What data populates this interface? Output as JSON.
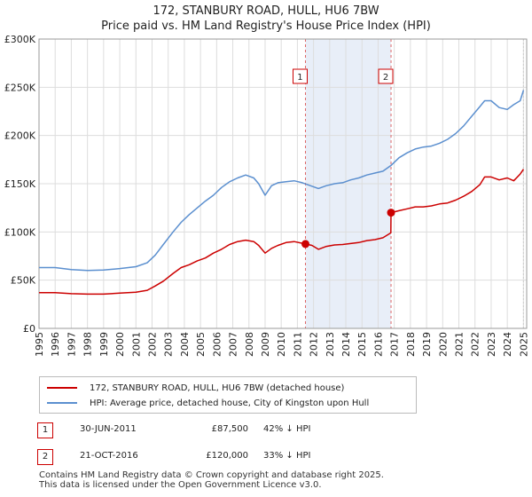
{
  "chart_data": {
    "type": "line",
    "title": "172, STANBURY ROAD, HULL, HU6 7BW",
    "subtitle": "Price paid vs. HM Land Registry's House Price Index (HPI)",
    "xlabel": "",
    "ylabel": "",
    "xlim": [
      1995,
      2025.2
    ],
    "ylim": [
      0,
      300000
    ],
    "grid": true,
    "y_ticks": [
      0,
      50000,
      100000,
      150000,
      200000,
      250000,
      300000
    ],
    "y_tick_labels": [
      "£0",
      "£50K",
      "£100K",
      "£150K",
      "£200K",
      "£250K",
      "£300K"
    ],
    "x_ticks": [
      1995,
      1996,
      1997,
      1998,
      1999,
      2000,
      2001,
      2002,
      2003,
      2004,
      2005,
      2006,
      2007,
      2008,
      2009,
      2010,
      2011,
      2012,
      2013,
      2014,
      2015,
      2016,
      2017,
      2018,
      2019,
      2020,
      2021,
      2022,
      2023,
      2024,
      2025
    ],
    "x_tick_labels": [
      "1995",
      "1996",
      "1997",
      "1998",
      "1999",
      "2000",
      "2001",
      "2002",
      "2003",
      "2004",
      "2005",
      "2006",
      "2007",
      "2008",
      "2009",
      "2010",
      "2011",
      "2012",
      "2013",
      "2014",
      "2015",
      "2016",
      "2017",
      "2018",
      "2019",
      "2020",
      "2021",
      "2022",
      "2023",
      "2024",
      "2025"
    ],
    "shaded_region": {
      "x0": 2011.5,
      "x1": 2016.8
    },
    "series": [
      {
        "name": "172, STANBURY ROAD, HULL, HU6 7BW (detached house)",
        "color": "#cc0000",
        "x": [
          1995,
          1996,
          1997,
          1998,
          1999,
          2000,
          2001,
          2001.7,
          2002.2,
          2002.7,
          2003.3,
          2003.8,
          2004.3,
          2004.8,
          2005.3,
          2005.8,
          2006.3,
          2006.8,
          2007.3,
          2007.8,
          2008.3,
          2008.6,
          2009.0,
          2009.4,
          2009.8,
          2010.3,
          2010.8,
          2011.5,
          2011.9,
          2012.3,
          2012.8,
          2013.3,
          2013.8,
          2014.3,
          2014.8,
          2015.3,
          2015.8,
          2016.3,
          2016.79,
          2016.8,
          2017.3,
          2017.8,
          2018.3,
          2018.8,
          2019.3,
          2019.8,
          2020.3,
          2020.8,
          2021.3,
          2021.8,
          2022.3,
          2022.6,
          2023.0,
          2023.5,
          2024.0,
          2024.4,
          2024.8,
          2025.0
        ],
        "y": [
          37000,
          37000,
          36000,
          35500,
          35500,
          36500,
          37500,
          39500,
          44000,
          49000,
          57000,
          63000,
          66000,
          70000,
          73000,
          78000,
          82000,
          87000,
          90000,
          91500,
          90000,
          86000,
          78000,
          83000,
          86000,
          89000,
          90000,
          87500,
          86000,
          82000,
          85000,
          86500,
          87000,
          88000,
          89000,
          91000,
          92000,
          94000,
          99000,
          120000,
          122000,
          124000,
          126000,
          126000,
          127000,
          129000,
          130000,
          133000,
          137000,
          142000,
          149000,
          157000,
          157000,
          154000,
          156000,
          153000,
          160000,
          165000
        ]
      },
      {
        "name": "HPI: Average price, detached house, City of Kingston upon Hull",
        "color": "#5b8fcf",
        "x": [
          1995,
          1996,
          1997,
          1998,
          1999,
          2000,
          2001,
          2001.7,
          2002.2,
          2002.7,
          2003.3,
          2003.8,
          2004.3,
          2004.8,
          2005.3,
          2005.8,
          2006.3,
          2006.8,
          2007.3,
          2007.8,
          2008.3,
          2008.6,
          2009.0,
          2009.4,
          2009.8,
          2010.3,
          2010.8,
          2011.3,
          2011.8,
          2012.3,
          2012.8,
          2013.3,
          2013.8,
          2014.3,
          2014.8,
          2015.3,
          2015.8,
          2016.3,
          2016.8,
          2017.3,
          2017.8,
          2018.3,
          2018.8,
          2019.3,
          2019.8,
          2020.3,
          2020.8,
          2021.3,
          2021.8,
          2022.3,
          2022.6,
          2023.0,
          2023.5,
          2024.0,
          2024.4,
          2024.8,
          2025.0
        ],
        "y": [
          63000,
          63000,
          61000,
          60000,
          60500,
          62000,
          64000,
          68000,
          76000,
          87000,
          100000,
          110000,
          118000,
          125000,
          132000,
          138000,
          146000,
          152000,
          156000,
          159000,
          156000,
          150000,
          138000,
          148000,
          151000,
          152000,
          153000,
          151000,
          148000,
          145000,
          148000,
          150000,
          151000,
          154000,
          156000,
          159000,
          161000,
          163000,
          169000,
          177000,
          182000,
          186000,
          188000,
          189000,
          192000,
          196000,
          202000,
          210000,
          220000,
          230000,
          236000,
          236000,
          229000,
          227000,
          232000,
          236000,
          247000
        ]
      }
    ],
    "annotations": [
      {
        "label": "1",
        "x": 2011.5
      },
      {
        "label": "2",
        "x": 2016.8
      }
    ],
    "sale_points": [
      {
        "x": 2011.5,
        "y": 87500
      },
      {
        "x": 2016.8,
        "y": 120000
      }
    ]
  },
  "legend": {
    "items": [
      {
        "label": "172, STANBURY ROAD, HULL, HU6 7BW (detached house)",
        "color": "#cc0000"
      },
      {
        "label": "HPI: Average price, detached house, City of Kingston upon Hull",
        "color": "#5b8fcf"
      }
    ]
  },
  "sales": [
    {
      "id": "1",
      "date": "30-JUN-2011",
      "price": "£87,500",
      "hpi": "42% ↓ HPI"
    },
    {
      "id": "2",
      "date": "21-OCT-2016",
      "price": "£120,000",
      "hpi": "33% ↓ HPI"
    }
  ],
  "footer": {
    "line1": "Contains HM Land Registry data © Crown copyright and database right 2025.",
    "line2": "This data is licensed under the Open Government Licence v3.0."
  }
}
